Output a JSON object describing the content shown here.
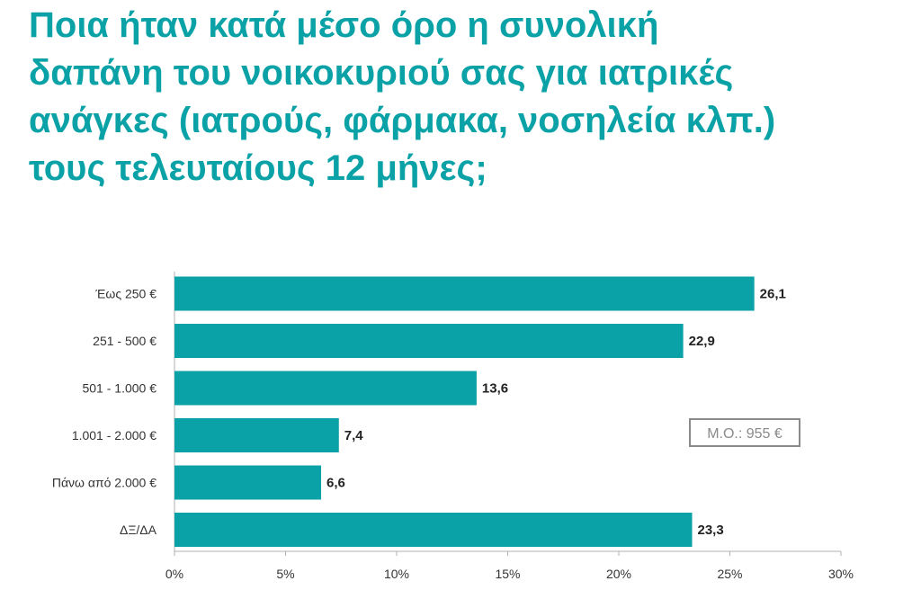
{
  "title_lines": [
    "Ποια ήταν κατά μέσο όρο η συνολική",
    "δαπάνη του νοικοκυριού σας για ιατρικές",
    "ανάγκες (ιατρούς, φάρμακα, νοσηλεία κλπ.)",
    "τους τελευταίους 12 μήνες;"
  ],
  "colors": {
    "title": "#0aa2a6",
    "bar": "#0aa2a6",
    "annotation_border": "#8a8a8a"
  },
  "chart_data": {
    "type": "bar",
    "orientation": "horizontal",
    "title": "Ποια ήταν κατά μέσο όρο η συνολική δαπάνη του νοικοκυριού σας για ιατρικές ανάγκες (ιατρούς, φάρμακα, νοσηλεία κλπ.) τους τελευταίους 12 μήνες;",
    "categories": [
      "Έως 250 €",
      "251 - 500 €",
      "501 - 1.000 €",
      "1.001 - 2.000 €",
      "Πάνω από 2.000 €",
      "ΔΞ/ΔΑ"
    ],
    "values": [
      26.1,
      22.9,
      13.6,
      7.4,
      6.6,
      23.3
    ],
    "value_labels": [
      "26,1",
      "22,9",
      "13,6",
      "7,4",
      "6,6",
      "23,3"
    ],
    "xlim": [
      0,
      30
    ],
    "x_ticks": [
      0,
      5,
      10,
      15,
      20,
      25,
      30
    ],
    "x_tick_labels": [
      "0%",
      "5%",
      "10%",
      "15%",
      "20%",
      "25%",
      "30%"
    ],
    "grid": false,
    "annotation": "Μ.Ο.: 955 €"
  }
}
